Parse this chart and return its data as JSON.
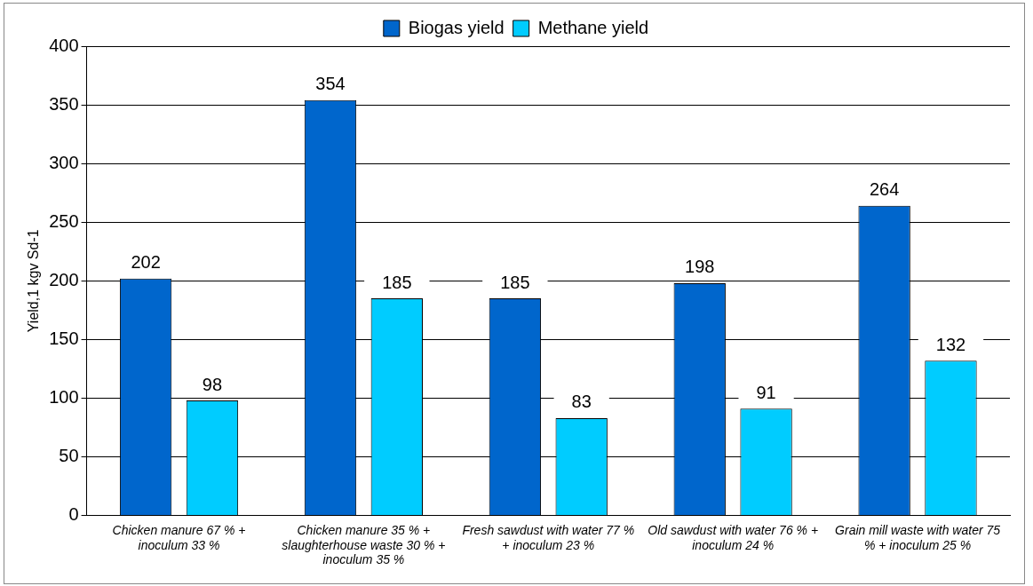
{
  "chart_data": {
    "type": "bar",
    "ylabel": "Yield,1 kgv Sd-1",
    "categories": [
      "Chicken manure 67 % + inoculum 33 %",
      "Chicken manure 35 % + slaughterhouse waste 30 % + inoculum 35 %",
      "Fresh sawdust with water 77 % + inoculum 23 %",
      "Old sawdust with water 76 % + inoculum 24 %",
      "Grain mill waste with water 75 % + inoculum 25 %"
    ],
    "series": [
      {
        "name": "Biogas yield",
        "color": "#0066cc",
        "values": [
          202,
          354,
          185,
          198,
          264
        ]
      },
      {
        "name": "Methane yield",
        "color": "#00ccff",
        "values": [
          98,
          185,
          83,
          91,
          132
        ]
      }
    ],
    "ylim": [
      0,
      400
    ],
    "yticks": [
      0,
      50,
      100,
      150,
      200,
      250,
      300,
      350,
      400
    ],
    "grid": "y",
    "legend": "top",
    "data_labels": true
  }
}
